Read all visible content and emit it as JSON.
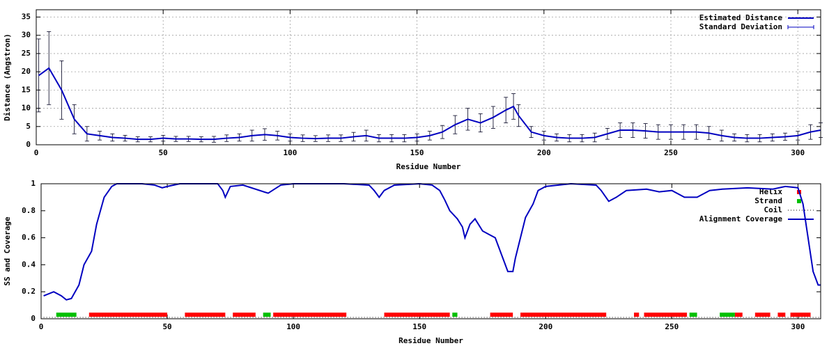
{
  "chart_data": [
    {
      "type": "line",
      "xlabel": "Residue Number",
      "ylabel": "Distance (Angstron)",
      "xlim": [
        0,
        309
      ],
      "ylim": [
        0,
        37
      ],
      "xticks": [
        0,
        50,
        100,
        150,
        200,
        250,
        300
      ],
      "yticks": [
        0,
        5,
        10,
        15,
        20,
        25,
        30,
        35
      ],
      "grid": true,
      "legend": "top-right",
      "series": [
        {
          "name": "Estimated Distance",
          "error_name": "Standard Deviation",
          "color": "#0000c0",
          "x": [
            1,
            5,
            10,
            15,
            20,
            25,
            30,
            35,
            40,
            45,
            50,
            55,
            60,
            65,
            70,
            75,
            80,
            85,
            90,
            95,
            100,
            105,
            110,
            115,
            120,
            125,
            130,
            135,
            140,
            145,
            150,
            155,
            160,
            165,
            170,
            175,
            180,
            185,
            188,
            190,
            195,
            200,
            205,
            210,
            215,
            220,
            225,
            230,
            235,
            240,
            245,
            250,
            255,
            260,
            265,
            270,
            275,
            280,
            285,
            290,
            295,
            300,
            305,
            309
          ],
          "values": [
            19,
            21,
            15,
            7,
            3,
            2.5,
            2,
            1.8,
            1.5,
            1.5,
            1.8,
            1.6,
            1.6,
            1.5,
            1.5,
            1.8,
            2,
            2.5,
            2.8,
            2.5,
            2,
            1.8,
            1.7,
            1.8,
            1.8,
            2.2,
            2.5,
            1.8,
            1.8,
            1.8,
            2,
            2.5,
            3.5,
            5.5,
            7,
            6,
            7.5,
            9.5,
            10.5,
            8,
            3.5,
            2.5,
            2,
            1.8,
            1.8,
            2,
            3,
            4,
            4,
            3.8,
            3.5,
            3.5,
            3.5,
            3.5,
            3.2,
            2.5,
            2,
            1.8,
            1.8,
            2,
            2.2,
            2.5,
            3.5,
            4
          ],
          "errors": [
            10,
            10,
            8,
            4,
            2,
            1.2,
            1,
            0.8,
            0.7,
            0.7,
            0.8,
            0.7,
            0.7,
            0.7,
            0.8,
            0.9,
            1,
            1.5,
            1.6,
            1.2,
            1,
            0.9,
            0.8,
            0.9,
            0.9,
            1.2,
            1.5,
            1,
            1,
            1,
            1,
            1.2,
            1.8,
            2.5,
            3,
            2.5,
            3,
            3.5,
            3.5,
            3,
            1.5,
            1.2,
            1,
            1,
            1,
            1.2,
            1.5,
            2,
            2,
            2,
            2,
            2,
            2,
            2,
            1.8,
            1.5,
            1,
            1,
            1,
            1,
            1,
            1.2,
            2,
            2
          ]
        }
      ]
    },
    {
      "type": "line",
      "xlabel": "Residue Number",
      "ylabel": "SS and Coverage",
      "xlim": [
        0,
        309
      ],
      "ylim": [
        0,
        1
      ],
      "xticks": [
        0,
        50,
        100,
        150,
        200,
        250,
        300
      ],
      "yticks": [
        0,
        0.2,
        0.4,
        0.6,
        0.8,
        1
      ],
      "grid": false,
      "legend": "top-right",
      "series": [
        {
          "name": "Helix",
          "color": "#ff0000",
          "y": 0.03,
          "segments": [
            [
              19,
              50
            ],
            [
              57,
              73
            ],
            [
              76,
              85
            ],
            [
              92,
              121
            ],
            [
              136,
              162
            ],
            [
              178,
              187
            ],
            [
              190,
              224
            ],
            [
              235,
              237
            ],
            [
              239,
              256
            ],
            [
              275,
              278
            ],
            [
              283,
              289
            ],
            [
              292,
              295
            ],
            [
              297,
              305
            ]
          ]
        },
        {
          "name": "Strand",
          "color": "#00c000",
          "y": 0.03,
          "segments": [
            [
              6,
              14
            ],
            [
              88,
              91
            ],
            [
              163,
              165
            ],
            [
              257,
              260
            ],
            [
              269,
              275
            ]
          ]
        },
        {
          "name": "Coil",
          "color": "#000000",
          "y": 0.01,
          "segments": [
            [
              1,
              309
            ]
          ]
        },
        {
          "name": "Alignment Coverage",
          "color": "#0000c0",
          "x": [
            1,
            5,
            8,
            10,
            12,
            15,
            17,
            20,
            22,
            25,
            28,
            30,
            40,
            45,
            48,
            50,
            55,
            60,
            65,
            70,
            72,
            73,
            75,
            80,
            85,
            90,
            95,
            100,
            110,
            120,
            130,
            132,
            134,
            136,
            140,
            150,
            155,
            158,
            160,
            162,
            165,
            167,
            168,
            170,
            172,
            175,
            178,
            180,
            182,
            184,
            185,
            187,
            188,
            190,
            192,
            195,
            197,
            200,
            210,
            220,
            222,
            225,
            228,
            232,
            240,
            245,
            250,
            255,
            260,
            265,
            270,
            280,
            290,
            295,
            300,
            302,
            304,
            306,
            308,
            309
          ],
          "values": [
            0.17,
            0.2,
            0.17,
            0.14,
            0.15,
            0.25,
            0.4,
            0.5,
            0.7,
            0.9,
            0.98,
            1,
            1,
            0.99,
            0.97,
            0.98,
            1,
            1,
            1,
            1,
            0.95,
            0.9,
            0.98,
            0.99,
            0.96,
            0.93,
            0.99,
            1,
            1,
            1,
            0.99,
            0.95,
            0.9,
            0.95,
            0.99,
            1,
            0.99,
            0.95,
            0.88,
            0.8,
            0.74,
            0.68,
            0.6,
            0.7,
            0.74,
            0.65,
            0.62,
            0.6,
            0.5,
            0.4,
            0.35,
            0.35,
            0.45,
            0.6,
            0.75,
            0.85,
            0.95,
            0.98,
            1,
            0.99,
            0.95,
            0.87,
            0.9,
            0.95,
            0.96,
            0.94,
            0.95,
            0.9,
            0.9,
            0.95,
            0.96,
            0.97,
            0.96,
            0.98,
            0.97,
            0.85,
            0.6,
            0.35,
            0.25,
            0.25
          ]
        }
      ]
    }
  ]
}
